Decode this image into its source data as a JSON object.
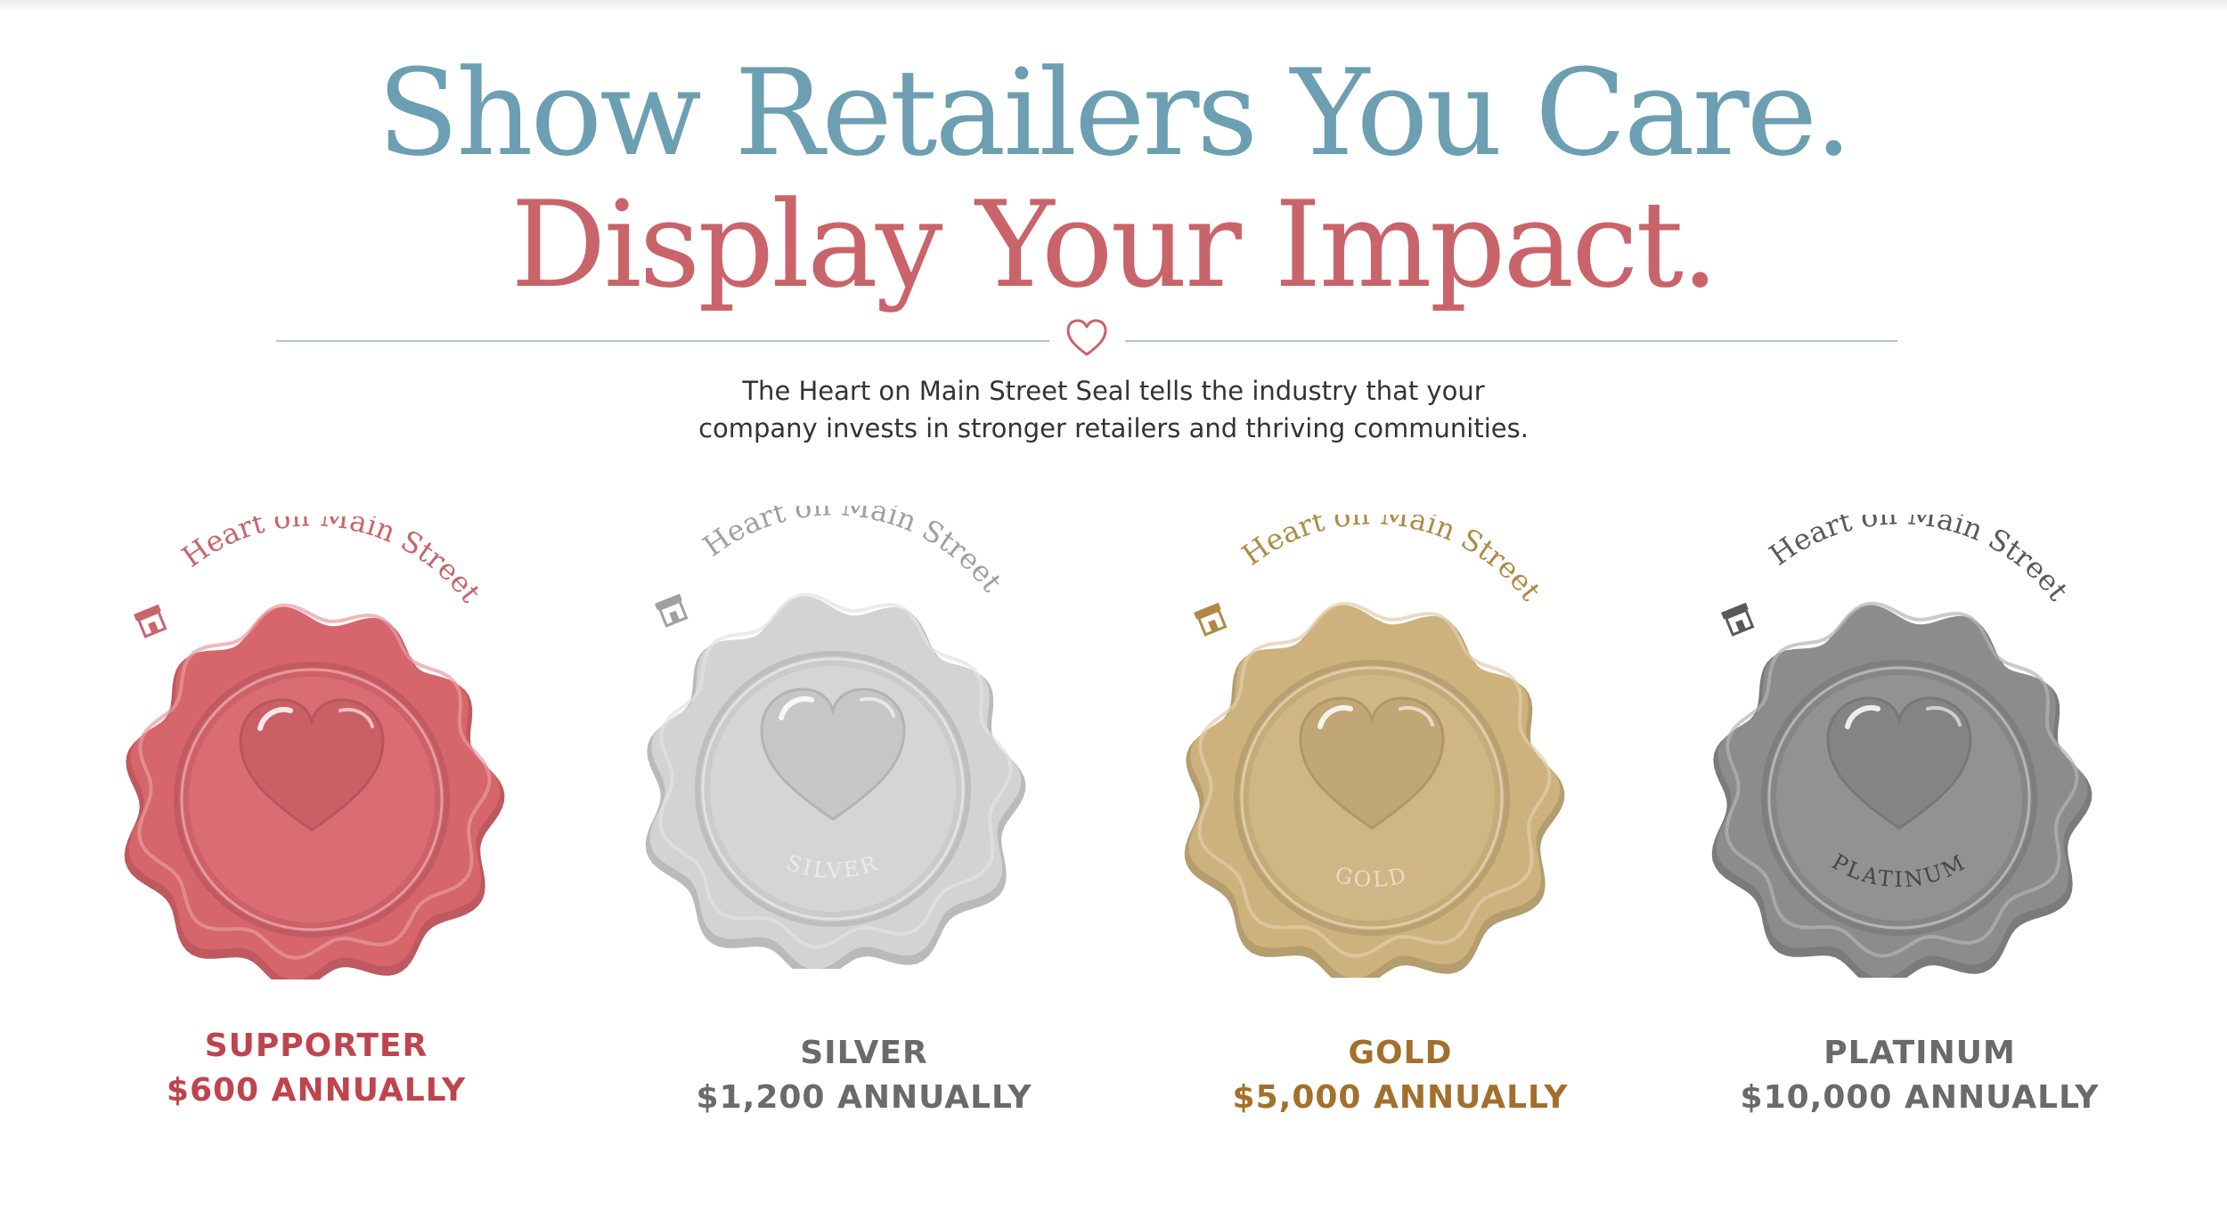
{
  "heading": {
    "line1": "Show Retailers You Care.",
    "line2": "Display Your Impact."
  },
  "intro": {
    "line1": "The Heart on Main Street Seal tells the industry that your",
    "line2": "company invests in stronger retailers and thriving communities."
  },
  "divider": {
    "icon": "heart-outline-icon",
    "color": "#c9646a"
  },
  "seals": [
    {
      "arc_text": "Heart on Main Street",
      "badge_text": "",
      "icon": "storefront-icon",
      "wax_color": "#d7656c",
      "arc_color": "#c9646a",
      "tier": "SUPPORTER",
      "price": "$600 ANNUALLY",
      "caption_color": "#c0444d"
    },
    {
      "arc_text": "Heart on Main Street",
      "badge_text": "SILVER",
      "icon": "storefront-icon",
      "wax_color": "#d3d3d3",
      "arc_color": "#a0a0a0",
      "tier": "SILVER",
      "price": "$1,200 ANNUALLY",
      "caption_color": "#6a6a6a"
    },
    {
      "arc_text": "Heart on Main Street",
      "badge_text": "GOLD",
      "icon": "storefront-icon",
      "wax_color": "#cdb27d",
      "arc_color": "#b08a45",
      "tier": "GOLD",
      "price": "$5,000 ANNUALLY",
      "caption_color": "#a3702c"
    },
    {
      "arc_text": "Heart on Main Street",
      "badge_text": "PLATINUM",
      "icon": "storefront-icon",
      "wax_color": "#8c8c8c",
      "arc_color": "#5a5a5a",
      "tier": "PLATINUM",
      "price": "$10,000 ANNUALLY",
      "caption_color": "#6a6a6a"
    }
  ]
}
